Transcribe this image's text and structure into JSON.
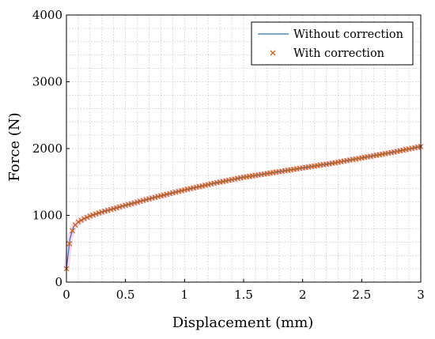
{
  "chart_data": {
    "type": "line",
    "xlabel": "Displacement (mm)",
    "ylabel": "Force (N)",
    "xlim": [
      0,
      3
    ],
    "ylim": [
      0,
      4000
    ],
    "x_ticks": [
      "0",
      "0.5",
      "1",
      "1.5",
      "2",
      "2.5",
      "3"
    ],
    "y_ticks": [
      "0",
      "1000",
      "2000",
      "3000",
      "4000"
    ],
    "x_tick_values": [
      0,
      0.5,
      1,
      1.5,
      2,
      2.5,
      3
    ],
    "y_tick_values": [
      0,
      1000,
      2000,
      3000,
      4000
    ],
    "grid": "dotted, minor",
    "legend_position": "top-right",
    "colors": {
      "without_correction": "#2f6fb5",
      "with_correction": "#c8641e"
    },
    "series": [
      {
        "name": "Without correction",
        "style": "line",
        "x": [
          0,
          0.03,
          0.06,
          0.1,
          0.15,
          0.2,
          0.3,
          0.5,
          0.75,
          1.0,
          1.25,
          1.5,
          1.75,
          2.0,
          2.25,
          2.5,
          2.75,
          3.0
        ],
        "y": [
          200,
          650,
          830,
          900,
          950,
          990,
          1050,
          1150,
          1270,
          1380,
          1480,
          1570,
          1640,
          1710,
          1780,
          1860,
          1940,
          2030
        ]
      },
      {
        "name": "With correction",
        "style": "marker-x",
        "x": [
          0,
          0.03,
          0.06,
          0.1,
          0.15,
          0.2,
          0.3,
          0.5,
          0.75,
          1.0,
          1.25,
          1.5,
          1.75,
          2.0,
          2.25,
          2.5,
          2.75,
          3.0
        ],
        "y": [
          200,
          650,
          830,
          900,
          950,
          990,
          1050,
          1150,
          1270,
          1380,
          1480,
          1570,
          1640,
          1710,
          1780,
          1860,
          1940,
          2030
        ]
      }
    ]
  }
}
